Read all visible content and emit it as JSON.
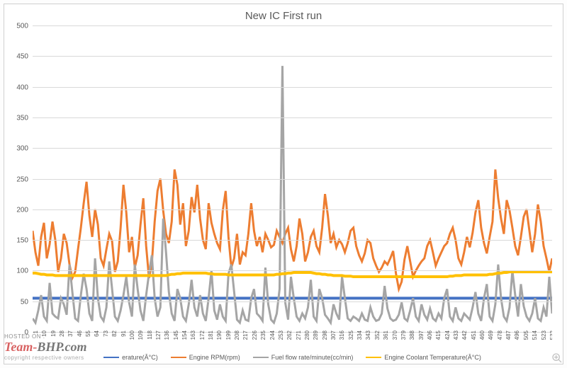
{
  "chart": {
    "type": "line",
    "title": "New IC First run",
    "title_fontsize": 15,
    "background_color": "#ffffff",
    "grid_color": "#d9d9d9",
    "yaxis": {
      "min": 0,
      "max": 500,
      "step": 50,
      "label_fontsize": 10
    },
    "xaxis": {
      "min": 1,
      "max": 535,
      "tick_step": 9,
      "label_fontsize": 8,
      "ticks": [
        1,
        10,
        19,
        28,
        37,
        46,
        55,
        64,
        73,
        82,
        91,
        100,
        109,
        118,
        127,
        136,
        145,
        154,
        163,
        172,
        181,
        190,
        199,
        208,
        217,
        226,
        235,
        244,
        253,
        262,
        271,
        280,
        289,
        298,
        307,
        316,
        325,
        334,
        343,
        352,
        361,
        370,
        379,
        388,
        397,
        406,
        415,
        424,
        433,
        442,
        451,
        460,
        469,
        478,
        487,
        496,
        505,
        514,
        523,
        532
      ]
    },
    "series": [
      {
        "name": "erature(Â°C)",
        "legend_label": "erature(Â°C)",
        "color": "#4472c4",
        "width": 2,
        "values_constant": 55
      },
      {
        "name": "Engine RPM(rpm)",
        "legend_label": "Engine RPM(rpm)",
        "color": "#ed7d31",
        "width": 1.5,
        "values": [
          165,
          130,
          108,
          155,
          178,
          120,
          143,
          180,
          150,
          98,
          120,
          160,
          145,
          110,
          88,
          98,
          135,
          170,
          210,
          245,
          190,
          155,
          200,
          175,
          120,
          108,
          135,
          160,
          148,
          98,
          115,
          170,
          240,
          195,
          130,
          155,
          105,
          125,
          175,
          218,
          140,
          88,
          112,
          180,
          230,
          250,
          198,
          160,
          145,
          180,
          265,
          240,
          175,
          210,
          140,
          165,
          220,
          195,
          240,
          185,
          150,
          135,
          210,
          178,
          160,
          145,
          135,
          198,
          230,
          155,
          105,
          120,
          160,
          110,
          130,
          125,
          160,
          210,
          165,
          140,
          155,
          130,
          160,
          150,
          138,
          142,
          165,
          155,
          145,
          160,
          170,
          135,
          115,
          140,
          185,
          160,
          115,
          130,
          155,
          165,
          140,
          130,
          170,
          225,
          190,
          145,
          160,
          138,
          150,
          143,
          130,
          145,
          165,
          170,
          140,
          125,
          115,
          128,
          150,
          145,
          120,
          108,
          98,
          105,
          115,
          110,
          120,
          132,
          95,
          70,
          82,
          118,
          140,
          115,
          90,
          100,
          108,
          115,
          120,
          140,
          150,
          130,
          108,
          120,
          130,
          140,
          145,
          160,
          170,
          150,
          120,
          110,
          130,
          155,
          138,
          162,
          195,
          215,
          170,
          145,
          128,
          155,
          180,
          265,
          218,
          185,
          160,
          215,
          198,
          170,
          140,
          125,
          155,
          188,
          200,
          165,
          130,
          160,
          208,
          180,
          140,
          120,
          98,
          120
        ]
      },
      {
        "name": "Fuel flow rate/minute(cc/min)",
        "legend_label": "Fuel flow rate/minute(cc/min)",
        "color": "#a5a5a5",
        "width": 1.5,
        "values": [
          22,
          15,
          35,
          60,
          25,
          18,
          80,
          30,
          25,
          22,
          55,
          45,
          28,
          110,
          65,
          22,
          18,
          60,
          95,
          70,
          30,
          18,
          120,
          55,
          25,
          18,
          40,
          115,
          70,
          25,
          18,
          35,
          60,
          90,
          48,
          25,
          110,
          70,
          35,
          18,
          60,
          95,
          125,
          55,
          25,
          40,
          185,
          130,
          65,
          30,
          18,
          70,
          55,
          25,
          18,
          45,
          85,
          40,
          25,
          60,
          30,
          18,
          55,
          100,
          35,
          20,
          45,
          25,
          18,
          95,
          110,
          65,
          20,
          15,
          35,
          20,
          18,
          55,
          70,
          30,
          25,
          18,
          105,
          45,
          20,
          15,
          30,
          70,
          434,
          48,
          20,
          90,
          55,
          25,
          18,
          30,
          22,
          40,
          85,
          25,
          18,
          70,
          55,
          28,
          22,
          15,
          45,
          30,
          20,
          90,
          55,
          22,
          18,
          25,
          22,
          18,
          30,
          20,
          18,
          40,
          25,
          18,
          20,
          30,
          75,
          38,
          22,
          18,
          20,
          28,
          48,
          22,
          18,
          35,
          55,
          25,
          18,
          45,
          28,
          20,
          38,
          22,
          18,
          30,
          22,
          55,
          70,
          25,
          18,
          40,
          22,
          18,
          30,
          25,
          20,
          40,
          65,
          30,
          18,
          55,
          78,
          25,
          18,
          45,
          110,
          55,
          25,
          18,
          40,
          100,
          60,
          25,
          78,
          42,
          25,
          18,
          30,
          55,
          22,
          18,
          40,
          25,
          90,
          30
        ]
      },
      {
        "name": "Engine Coolant Temperature(Â°C)",
        "legend_label": "Engine Coolant Temperature(Â°C)",
        "color": "#ffc000",
        "width": 2,
        "values": [
          96,
          96,
          95,
          94,
          94,
          93,
          93,
          93,
          92,
          92,
          92,
          92,
          92,
          92,
          92,
          92,
          92,
          92,
          92,
          92,
          92,
          92,
          92,
          92,
          92,
          92,
          92,
          92,
          92,
          92,
          92,
          92,
          92,
          92,
          92,
          92,
          92,
          92,
          92,
          92,
          92,
          92,
          92,
          92,
          92,
          92,
          92,
          92,
          93,
          94,
          94,
          95,
          95,
          96,
          96,
          96,
          96,
          96,
          96,
          96,
          96,
          96,
          95,
          95,
          94,
          94,
          94,
          94,
          94,
          93,
          93,
          93,
          93,
          93,
          93,
          93,
          93,
          93,
          93,
          93,
          93,
          93,
          93,
          93,
          93,
          93,
          94,
          94,
          95,
          95,
          96,
          96,
          97,
          97,
          97,
          97,
          97,
          97,
          97,
          96,
          95,
          95,
          94,
          94,
          93,
          93,
          92,
          92,
          92,
          92,
          91,
          91,
          91,
          90,
          90,
          90,
          90,
          90,
          90,
          90,
          90,
          90,
          90,
          90,
          90,
          90,
          90,
          90,
          90,
          90,
          90,
          90,
          90,
          90,
          90,
          90,
          90,
          90,
          90,
          90,
          90,
          90,
          90,
          90,
          90,
          90,
          90,
          91,
          91,
          92,
          92,
          92,
          93,
          93,
          93,
          93,
          93,
          93,
          93,
          93,
          93,
          94,
          94,
          95,
          96,
          96,
          97,
          97,
          98,
          98,
          98,
          98,
          98,
          98,
          98,
          98,
          98,
          98,
          98,
          98,
          98,
          98,
          98,
          98
        ]
      }
    ]
  },
  "watermark": {
    "line1": "HOSTED ON :",
    "line2a": "Team-",
    "line2b": "BHP.com",
    "line3": "copyright respective owners"
  }
}
